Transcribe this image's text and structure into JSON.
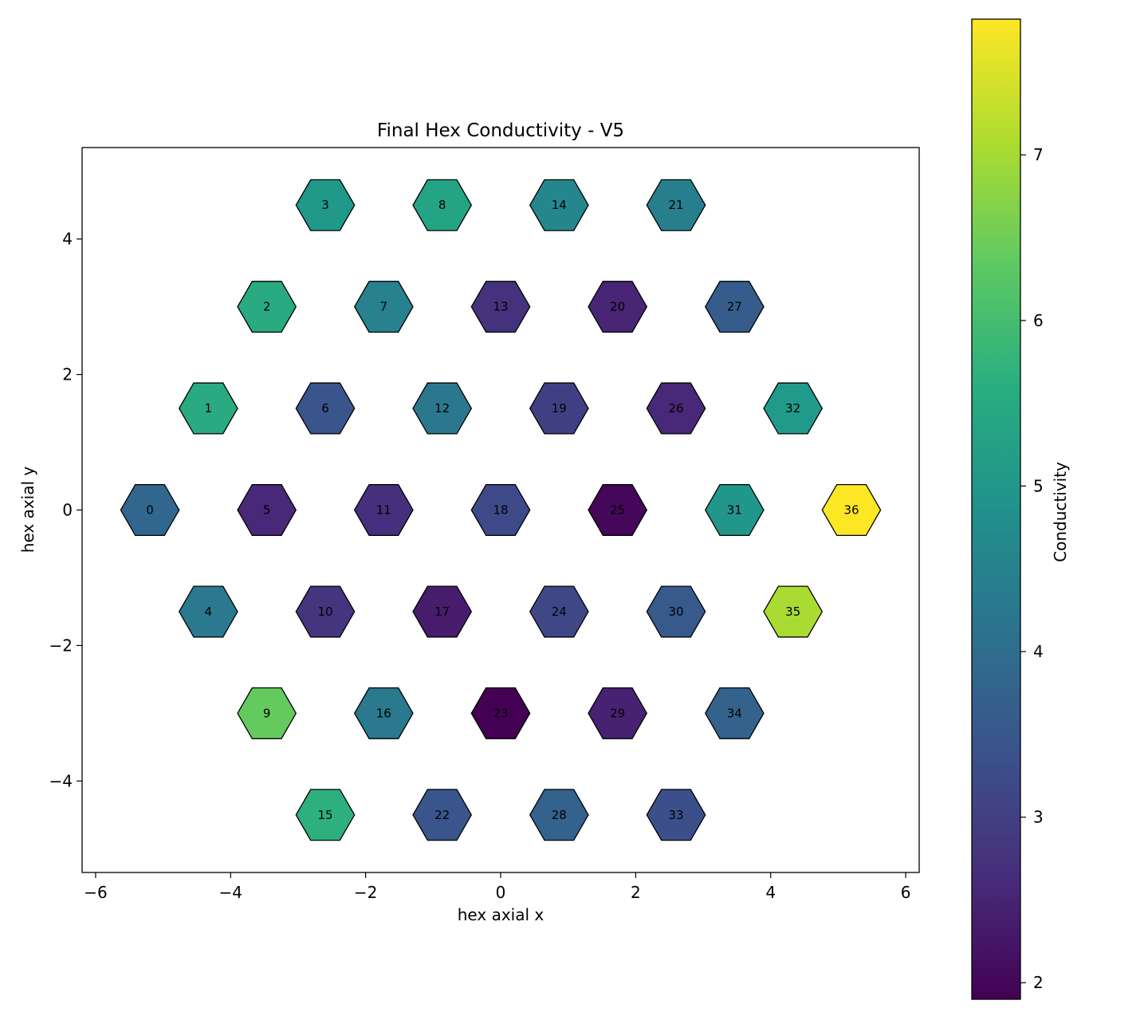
{
  "chart_data": {
    "type": "heatmap",
    "title": "Final Hex Conductivity - V5",
    "xlabel": "hex axial x",
    "ylabel": "hex axial y",
    "xlim": [
      -6.2,
      6.2
    ],
    "ylim": [
      -5.35,
      5.35
    ],
    "x_ticks": [
      -6,
      -4,
      -2,
      0,
      2,
      4,
      6
    ],
    "y_ticks": [
      -4,
      -2,
      0,
      2,
      4
    ],
    "x_tick_labels": [
      "−6",
      "−4",
      "−2",
      "0",
      "2",
      "4",
      "6"
    ],
    "y_tick_labels": [
      "−4",
      "−2",
      "0",
      "2",
      "4"
    ],
    "grid": false,
    "hex_radius": 0.433,
    "colormap": "viridis",
    "colorbar": {
      "label": "Conductivity",
      "range": [
        1.9,
        7.82
      ],
      "ticks": [
        2,
        3,
        4,
        5,
        6,
        7
      ],
      "tick_labels": [
        "2",
        "3",
        "4",
        "5",
        "6",
        "7"
      ]
    },
    "cells": [
      {
        "id": "0",
        "x": -5.196,
        "y": 0.0,
        "value": 3.85
      },
      {
        "id": "1",
        "x": -4.33,
        "y": 1.5,
        "value": 5.5
      },
      {
        "id": "2",
        "x": -3.464,
        "y": 3.0,
        "value": 5.5
      },
      {
        "id": "3",
        "x": -2.598,
        "y": 4.5,
        "value": 5.05
      },
      {
        "id": "4",
        "x": -4.33,
        "y": -1.5,
        "value": 4.3
      },
      {
        "id": "5",
        "x": -3.464,
        "y": 0.0,
        "value": 2.55
      },
      {
        "id": "6",
        "x": -2.598,
        "y": 1.5,
        "value": 3.45
      },
      {
        "id": "7",
        "x": -1.732,
        "y": 3.0,
        "value": 4.5
      },
      {
        "id": "8",
        "x": -0.866,
        "y": 4.5,
        "value": 5.35
      },
      {
        "id": "9",
        "x": -3.464,
        "y": -3.0,
        "value": 6.4
      },
      {
        "id": "10",
        "x": -2.598,
        "y": -1.5,
        "value": 2.8
      },
      {
        "id": "11",
        "x": -1.732,
        "y": 0.0,
        "value": 2.7
      },
      {
        "id": "12",
        "x": -0.866,
        "y": 1.5,
        "value": 4.25
      },
      {
        "id": "13",
        "x": 0.0,
        "y": 3.0,
        "value": 2.75
      },
      {
        "id": "14",
        "x": 0.866,
        "y": 4.5,
        "value": 4.65
      },
      {
        "id": "15",
        "x": -2.598,
        "y": -4.5,
        "value": 5.65
      },
      {
        "id": "16",
        "x": -1.732,
        "y": -3.0,
        "value": 4.3
      },
      {
        "id": "17",
        "x": -0.866,
        "y": -1.5,
        "value": 2.35
      },
      {
        "id": "18",
        "x": 0.0,
        "y": 0.0,
        "value": 3.2
      },
      {
        "id": "19",
        "x": 0.866,
        "y": 1.5,
        "value": 3.0
      },
      {
        "id": "20",
        "x": 1.732,
        "y": 3.0,
        "value": 2.5
      },
      {
        "id": "21",
        "x": 2.598,
        "y": 4.5,
        "value": 4.45
      },
      {
        "id": "22",
        "x": -0.866,
        "y": -4.5,
        "value": 3.45
      },
      {
        "id": "23",
        "x": 0.0,
        "y": -3.0,
        "value": 1.9
      },
      {
        "id": "24",
        "x": 0.866,
        "y": -1.5,
        "value": 3.15
      },
      {
        "id": "25",
        "x": 1.732,
        "y": 0.0,
        "value": 2.0
      },
      {
        "id": "26",
        "x": 2.598,
        "y": 1.5,
        "value": 2.55
      },
      {
        "id": "27",
        "x": 3.464,
        "y": 3.0,
        "value": 3.6
      },
      {
        "id": "28",
        "x": 0.866,
        "y": -4.5,
        "value": 3.75
      },
      {
        "id": "29",
        "x": 1.732,
        "y": -3.0,
        "value": 2.45
      },
      {
        "id": "30",
        "x": 2.598,
        "y": -1.5,
        "value": 3.55
      },
      {
        "id": "31",
        "x": 3.464,
        "y": 0.0,
        "value": 5.0
      },
      {
        "id": "32",
        "x": 4.33,
        "y": 1.5,
        "value": 5.1
      },
      {
        "id": "33",
        "x": 2.598,
        "y": -4.5,
        "value": 3.35
      },
      {
        "id": "34",
        "x": 3.464,
        "y": -3.0,
        "value": 3.75
      },
      {
        "id": "35",
        "x": 4.33,
        "y": -1.5,
        "value": 7.05
      },
      {
        "id": "36",
        "x": 5.196,
        "y": 0.0,
        "value": 7.82
      }
    ]
  }
}
